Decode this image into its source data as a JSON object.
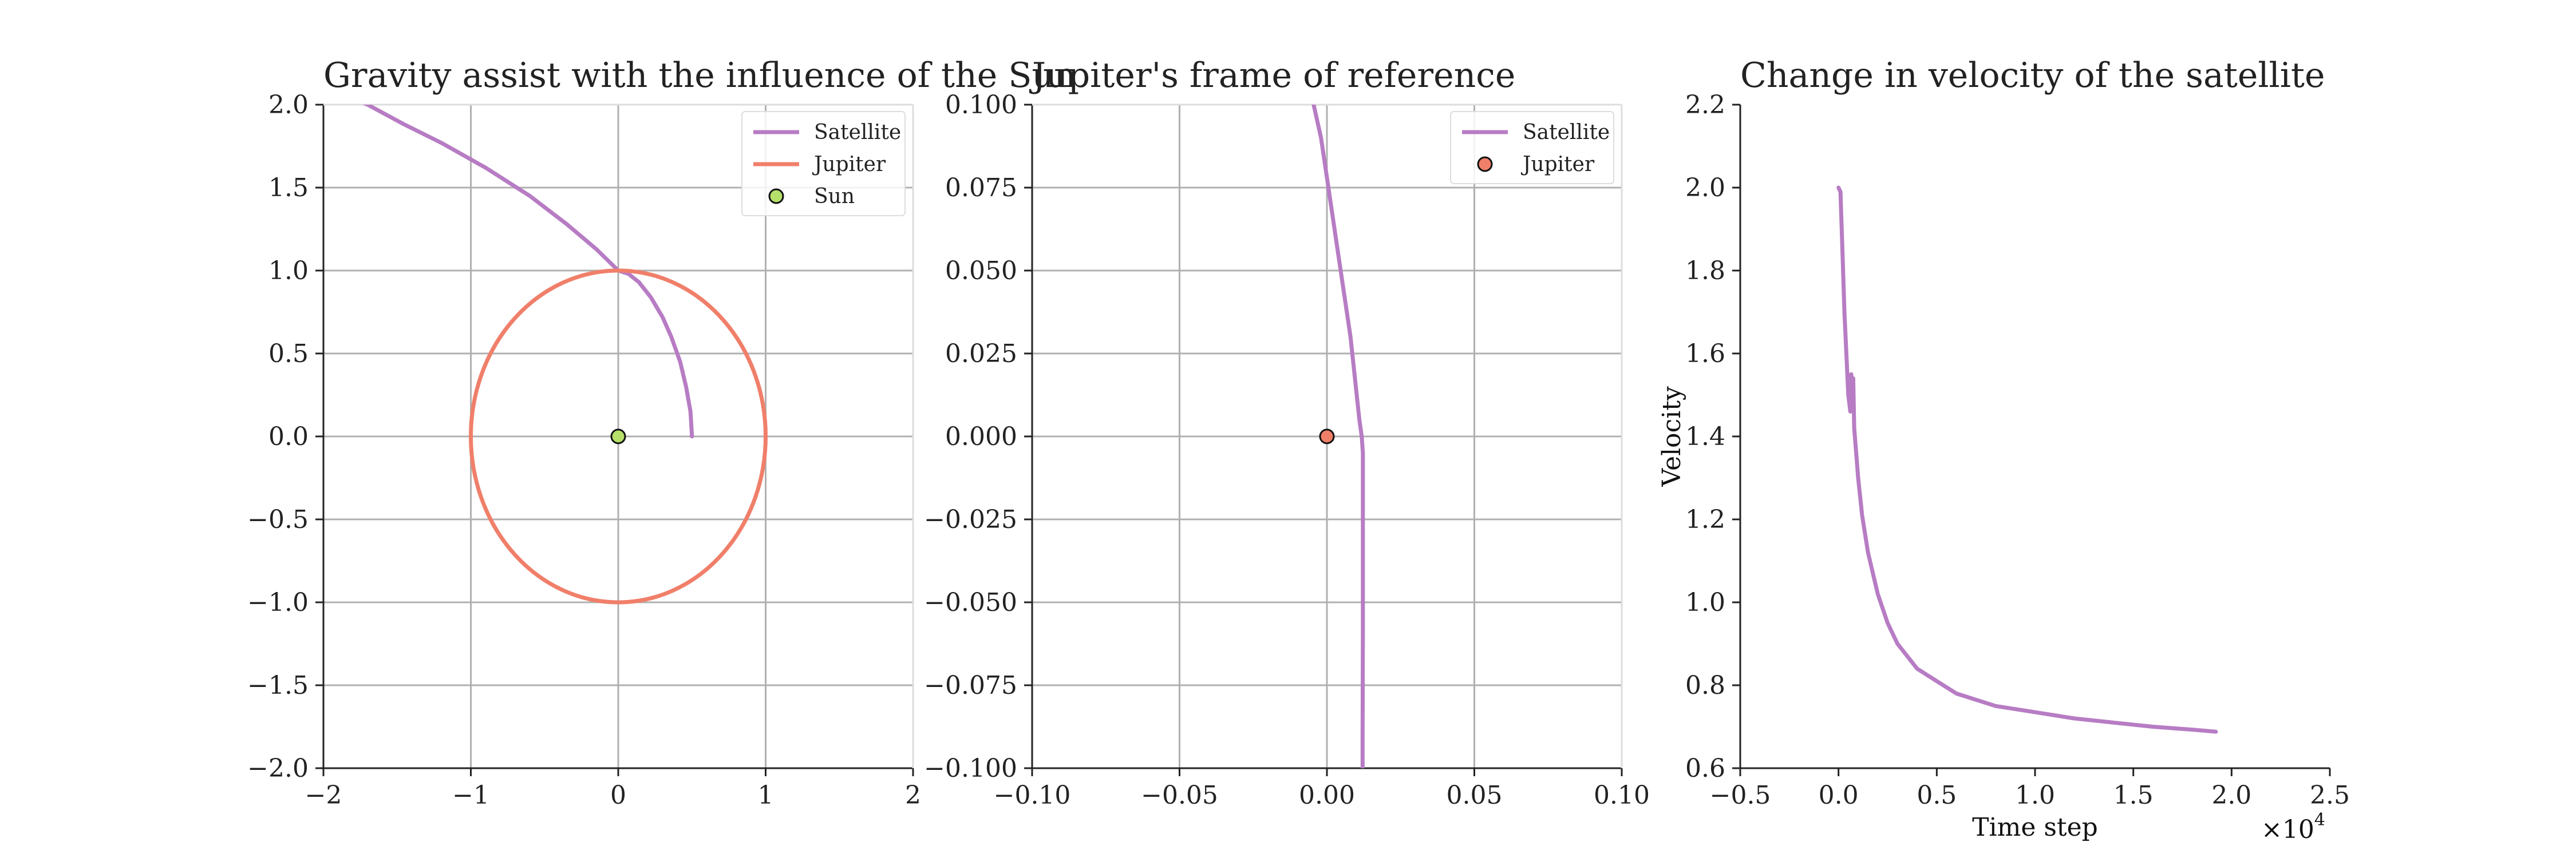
{
  "chart_data": [
    {
      "type": "line",
      "title": "Gravity assist with the influence of the Sun",
      "xlim": [
        -2,
        2
      ],
      "ylim": [
        -2,
        2
      ],
      "xticks": [
        -2,
        -1,
        0,
        1,
        2
      ],
      "yticks": [
        -2.0,
        -1.5,
        -1.0,
        -0.5,
        0.0,
        0.5,
        1.0,
        1.5,
        2.0
      ],
      "xtick_labels": [
        "−2",
        "−1",
        "0",
        "1",
        "2"
      ],
      "ytick_labels": [
        "−2.0",
        "−1.5",
        "−1.0",
        "−0.5",
        "0.0",
        "0.5",
        "1.0",
        "1.5",
        "2.0"
      ],
      "grid": true,
      "legend_position": "upper-right",
      "series": [
        {
          "name": "Satellite",
          "kind": "line",
          "color": "#b77cc4",
          "x": [
            0.5,
            0.49,
            0.46,
            0.42,
            0.36,
            0.3,
            0.22,
            0.14,
            0.07,
            0.0,
            -0.15,
            -0.35,
            -0.6,
            -0.9,
            -1.2,
            -1.45,
            -1.7,
            -1.78
          ],
          "y": [
            0.0,
            0.15,
            0.3,
            0.45,
            0.6,
            0.72,
            0.84,
            0.93,
            0.98,
            1.0,
            1.13,
            1.28,
            1.45,
            1.62,
            1.77,
            1.88,
            2.0,
            2.03
          ]
        },
        {
          "name": "Jupiter",
          "kind": "circle",
          "color": "#f07f6a",
          "center": [
            0,
            0
          ],
          "radius": 1.0
        },
        {
          "name": "Sun",
          "kind": "point",
          "color": "#b5e06a",
          "x": [
            0
          ],
          "y": [
            0
          ]
        }
      ]
    },
    {
      "type": "line",
      "title": "Jupiter's frame of reference",
      "xlim": [
        -0.1,
        0.1
      ],
      "ylim": [
        -0.1,
        0.1
      ],
      "xticks": [
        -0.1,
        -0.05,
        0.0,
        0.05,
        0.1
      ],
      "yticks": [
        -0.1,
        -0.075,
        -0.05,
        -0.025,
        0.0,
        0.025,
        0.05,
        0.075,
        0.1
      ],
      "xtick_labels": [
        "−0.10",
        "−0.05",
        "0.00",
        "0.05",
        "0.10"
      ],
      "ytick_labels": [
        "−0.100",
        "−0.075",
        "−0.050",
        "−0.025",
        "0.000",
        "0.025",
        "0.050",
        "0.075",
        "0.100"
      ],
      "grid": true,
      "legend_position": "upper-right",
      "series": [
        {
          "name": "Satellite",
          "kind": "line",
          "color": "#b77cc4",
          "x": [
            -0.0045,
            -0.002,
            0.0005,
            0.003,
            0.0055,
            0.008,
            0.0098,
            0.011,
            0.0118,
            0.0122,
            0.0122,
            0.0122,
            0.0121,
            0.0121
          ],
          "y": [
            0.1,
            0.09,
            0.075,
            0.06,
            0.045,
            0.03,
            0.015,
            0.005,
            0.0,
            -0.005,
            -0.03,
            -0.06,
            -0.09,
            -0.1
          ]
        },
        {
          "name": "Jupiter",
          "kind": "point",
          "color": "#f07f6a",
          "x": [
            0
          ],
          "y": [
            0
          ]
        }
      ]
    },
    {
      "type": "line",
      "title": "Change in velocity of the satellite",
      "xlabel": "Time step",
      "ylabel": "Velocity",
      "x_multiplier_label": "×10",
      "x_multiplier_exp": "4",
      "xlim": [
        -0.5,
        2.5
      ],
      "ylim": [
        0.6,
        2.2
      ],
      "xticks": [
        -0.5,
        0.0,
        0.5,
        1.0,
        1.5,
        2.0,
        2.5
      ],
      "yticks": [
        0.6,
        0.8,
        1.0,
        1.2,
        1.4,
        1.6,
        1.8,
        2.0,
        2.2
      ],
      "xtick_labels": [
        "−0.5",
        "0.0",
        "0.5",
        "1.0",
        "1.5",
        "2.0",
        "2.5"
      ],
      "ytick_labels": [
        "0.6",
        "0.8",
        "1.0",
        "1.2",
        "1.4",
        "1.6",
        "1.8",
        "2.0",
        "2.2"
      ],
      "grid": false,
      "series": [
        {
          "name": "Velocity",
          "kind": "line",
          "color": "#b77cc4",
          "x": [
            0.0,
            0.01,
            0.02,
            0.03,
            0.04,
            0.05,
            0.06,
            0.065,
            0.07,
            0.075,
            0.08,
            0.09,
            0.1,
            0.12,
            0.15,
            0.2,
            0.25,
            0.3,
            0.4,
            0.5,
            0.6,
            0.7,
            0.8,
            1.0,
            1.2,
            1.4,
            1.6,
            1.8,
            1.92
          ],
          "y": [
            2.0,
            1.99,
            1.85,
            1.7,
            1.6,
            1.5,
            1.46,
            1.55,
            1.52,
            1.54,
            1.42,
            1.36,
            1.3,
            1.21,
            1.12,
            1.02,
            0.95,
            0.9,
            0.84,
            0.81,
            0.78,
            0.765,
            0.75,
            0.735,
            0.72,
            0.71,
            0.7,
            0.693,
            0.688
          ]
        }
      ]
    }
  ]
}
